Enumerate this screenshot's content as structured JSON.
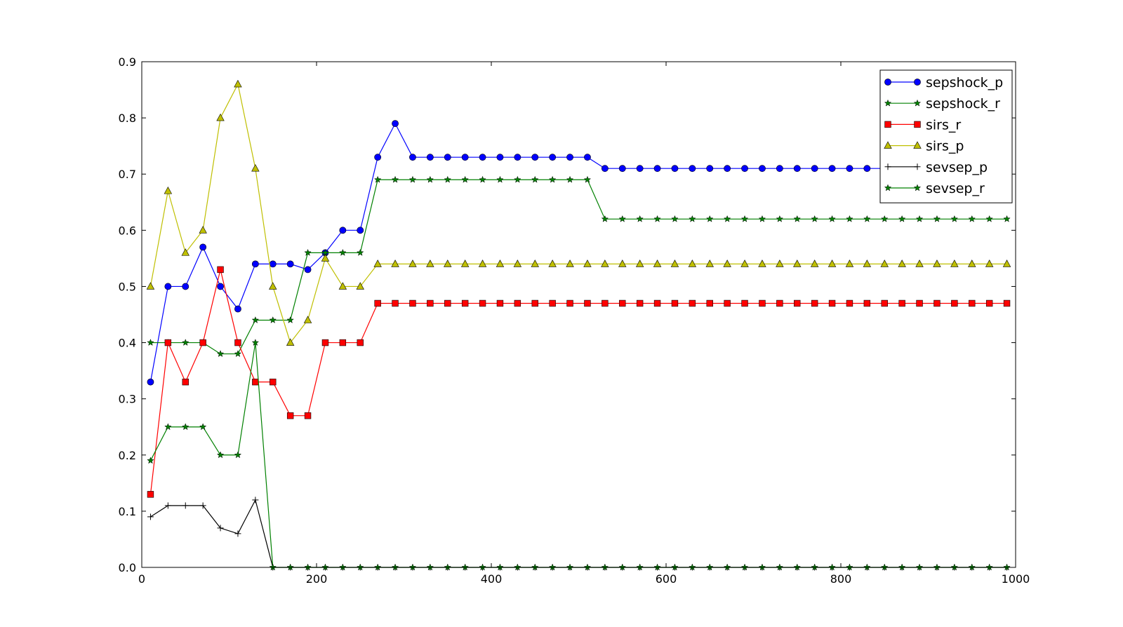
{
  "chart_data": {
    "type": "line",
    "title": "",
    "xlabel": "",
    "ylabel": "",
    "xlim": [
      0,
      1000
    ],
    "ylim": [
      0,
      0.9
    ],
    "xticks": [
      0,
      200,
      400,
      600,
      800,
      1000
    ],
    "yticks": [
      0.0,
      0.1,
      0.2,
      0.3,
      0.4,
      0.5,
      0.6,
      0.7,
      0.8,
      0.9
    ],
    "xtick_labels": [
      "0",
      "200",
      "400",
      "600",
      "800",
      "1000"
    ],
    "ytick_labels": [
      "0.0",
      "0.1",
      "0.2",
      "0.3",
      "0.4",
      "0.5",
      "0.6",
      "0.7",
      "0.8",
      "0.9"
    ],
    "grid": false,
    "legend_position": "top-right",
    "x": [
      10,
      30,
      50,
      70,
      90,
      110,
      130,
      150,
      170,
      190,
      210,
      230,
      250,
      270,
      290,
      310,
      330,
      350,
      370,
      390,
      410,
      430,
      450,
      470,
      490,
      510,
      530,
      550,
      570,
      590,
      610,
      630,
      650,
      670,
      690,
      710,
      730,
      750,
      770,
      790,
      810,
      830,
      850,
      870,
      890,
      910,
      930,
      950,
      970,
      990
    ],
    "series": [
      {
        "name": "sepshock_p",
        "color": "#0000ff",
        "marker": "circle",
        "values": [
          0.33,
          0.5,
          0.5,
          0.57,
          0.5,
          0.46,
          0.54,
          0.54,
          0.54,
          0.53,
          0.56,
          0.6,
          0.6,
          0.73,
          0.79,
          0.73,
          0.73,
          0.73,
          0.73,
          0.73,
          0.73,
          0.73,
          0.73,
          0.73,
          0.73,
          0.73,
          0.71,
          0.71,
          0.71,
          0.71,
          0.71,
          0.71,
          0.71,
          0.71,
          0.71,
          0.71,
          0.71,
          0.71,
          0.71,
          0.71,
          0.71,
          0.71,
          0.71,
          0.71,
          0.71,
          0.71,
          0.71,
          0.71,
          0.71,
          0.71
        ]
      },
      {
        "name": "sepshock_r",
        "color": "#008000",
        "marker": "star",
        "values": [
          0.4,
          0.4,
          0.4,
          0.4,
          0.38,
          0.38,
          0.44,
          0.44,
          0.44,
          0.56,
          0.56,
          0.56,
          0.56,
          0.69,
          0.69,
          0.69,
          0.69,
          0.69,
          0.69,
          0.69,
          0.69,
          0.69,
          0.69,
          0.69,
          0.69,
          0.69,
          0.62,
          0.62,
          0.62,
          0.62,
          0.62,
          0.62,
          0.62,
          0.62,
          0.62,
          0.62,
          0.62,
          0.62,
          0.62,
          0.62,
          0.62,
          0.62,
          0.62,
          0.62,
          0.62,
          0.62,
          0.62,
          0.62,
          0.62,
          0.62
        ]
      },
      {
        "name": "sirs_r",
        "color": "#ff0000",
        "marker": "square",
        "values": [
          0.13,
          0.4,
          0.33,
          0.4,
          0.53,
          0.4,
          0.33,
          0.33,
          0.27,
          0.27,
          0.4,
          0.4,
          0.4,
          0.47,
          0.47,
          0.47,
          0.47,
          0.47,
          0.47,
          0.47,
          0.47,
          0.47,
          0.47,
          0.47,
          0.47,
          0.47,
          0.47,
          0.47,
          0.47,
          0.47,
          0.47,
          0.47,
          0.47,
          0.47,
          0.47,
          0.47,
          0.47,
          0.47,
          0.47,
          0.47,
          0.47,
          0.47,
          0.47,
          0.47,
          0.47,
          0.47,
          0.47,
          0.47,
          0.47,
          0.47
        ]
      },
      {
        "name": "sirs_p",
        "color": "#bfbf00",
        "marker": "triangle",
        "values": [
          0.5,
          0.67,
          0.56,
          0.6,
          0.8,
          0.86,
          0.71,
          0.5,
          0.4,
          0.44,
          0.55,
          0.5,
          0.5,
          0.54,
          0.54,
          0.54,
          0.54,
          0.54,
          0.54,
          0.54,
          0.54,
          0.54,
          0.54,
          0.54,
          0.54,
          0.54,
          0.54,
          0.54,
          0.54,
          0.54,
          0.54,
          0.54,
          0.54,
          0.54,
          0.54,
          0.54,
          0.54,
          0.54,
          0.54,
          0.54,
          0.54,
          0.54,
          0.54,
          0.54,
          0.54,
          0.54,
          0.54,
          0.54,
          0.54,
          0.54
        ]
      },
      {
        "name": "sevsep_p",
        "color": "#000000",
        "marker": "plus",
        "values": [
          0.09,
          0.11,
          0.11,
          0.11,
          0.07,
          0.06,
          0.12,
          0.0,
          0.0,
          0.0,
          0.0,
          0.0,
          0.0,
          0.0,
          0.0,
          0.0,
          0.0,
          0.0,
          0.0,
          0.0,
          0.0,
          0.0,
          0.0,
          0.0,
          0.0,
          0.0,
          0.0,
          0.0,
          0.0,
          0.0,
          0.0,
          0.0,
          0.0,
          0.0,
          0.0,
          0.0,
          0.0,
          0.0,
          0.0,
          0.0,
          0.0,
          0.0,
          0.0,
          0.0,
          0.0,
          0.0,
          0.0,
          0.0,
          0.0,
          0.0
        ]
      },
      {
        "name": "sevsep_r",
        "color": "#008000",
        "marker": "star",
        "values": [
          0.19,
          0.25,
          0.25,
          0.25,
          0.2,
          0.2,
          0.4,
          0.0,
          0.0,
          0.0,
          0.0,
          0.0,
          0.0,
          0.0,
          0.0,
          0.0,
          0.0,
          0.0,
          0.0,
          0.0,
          0.0,
          0.0,
          0.0,
          0.0,
          0.0,
          0.0,
          0.0,
          0.0,
          0.0,
          0.0,
          0.0,
          0.0,
          0.0,
          0.0,
          0.0,
          0.0,
          0.0,
          0.0,
          0.0,
          0.0,
          0.0,
          0.0,
          0.0,
          0.0,
          0.0,
          0.0,
          0.0,
          0.0,
          0.0,
          0.0
        ]
      }
    ]
  }
}
